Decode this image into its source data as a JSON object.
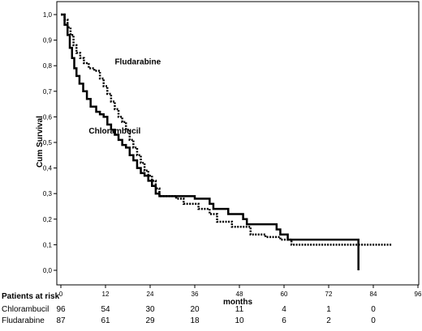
{
  "chart_data": {
    "type": "line",
    "xlabel": "months",
    "ylabel": "Cum Survival",
    "xlim": [
      0,
      96
    ],
    "ylim": [
      0.0,
      1.0
    ],
    "x_ticks": [
      "0",
      "12",
      "24",
      "36",
      "48",
      "60",
      "72",
      "84",
      "96"
    ],
    "y_ticks": [
      "0,0",
      "0,1",
      "0,2",
      "0,3",
      "0,4",
      "0,5",
      "0,6",
      "0,7",
      "0,8",
      "0,9",
      "1,0"
    ],
    "grid": false,
    "annotations": [
      {
        "text": "Fludarabine",
        "x": 14.5,
        "y": 0.805
      },
      {
        "text": "Chlorambucil",
        "x": 7.5,
        "y": 0.535
      }
    ],
    "series": [
      {
        "name": "Chlorambucil",
        "style": "solid",
        "points": [
          [
            0,
            1.0
          ],
          [
            1,
            0.96
          ],
          [
            1.8,
            0.92
          ],
          [
            2.4,
            0.87
          ],
          [
            3,
            0.83
          ],
          [
            3.6,
            0.79
          ],
          [
            4.2,
            0.76
          ],
          [
            5,
            0.73
          ],
          [
            6,
            0.7
          ],
          [
            7,
            0.67
          ],
          [
            8,
            0.64
          ],
          [
            9.5,
            0.62
          ],
          [
            10.5,
            0.61
          ],
          [
            11.5,
            0.6
          ],
          [
            12.5,
            0.57
          ],
          [
            13.5,
            0.55
          ],
          [
            14.5,
            0.53
          ],
          [
            15.5,
            0.51
          ],
          [
            16.5,
            0.49
          ],
          [
            17.5,
            0.48
          ],
          [
            18.5,
            0.45
          ],
          [
            19.5,
            0.43
          ],
          [
            20.5,
            0.4
          ],
          [
            21.5,
            0.38
          ],
          [
            22.5,
            0.37
          ],
          [
            23.5,
            0.35
          ],
          [
            24.5,
            0.33
          ],
          [
            25.5,
            0.3
          ],
          [
            26.5,
            0.29
          ],
          [
            36,
            0.28
          ],
          [
            40,
            0.26
          ],
          [
            41,
            0.24
          ],
          [
            45,
            0.22
          ],
          [
            49,
            0.2
          ],
          [
            50,
            0.18
          ],
          [
            58,
            0.16
          ],
          [
            59,
            0.14
          ],
          [
            61,
            0.12
          ],
          [
            80,
            0.12
          ],
          [
            80,
            0.0
          ]
        ]
      },
      {
        "name": "Fludarabine",
        "style": "dotted",
        "points": [
          [
            0,
            1.0
          ],
          [
            1,
            0.98
          ],
          [
            1.8,
            0.95
          ],
          [
            2.6,
            0.92
          ],
          [
            3.4,
            0.88
          ],
          [
            4.2,
            0.85
          ],
          [
            5.2,
            0.83
          ],
          [
            6.2,
            0.81
          ],
          [
            7.5,
            0.79
          ],
          [
            9,
            0.78
          ],
          [
            10.5,
            0.75
          ],
          [
            11.5,
            0.72
          ],
          [
            12.5,
            0.69
          ],
          [
            13.5,
            0.66
          ],
          [
            14.5,
            0.63
          ],
          [
            15.5,
            0.6
          ],
          [
            16.5,
            0.58
          ],
          [
            17.5,
            0.55
          ],
          [
            18.5,
            0.51
          ],
          [
            19.5,
            0.48
          ],
          [
            20.5,
            0.45
          ],
          [
            21.5,
            0.42
          ],
          [
            22.5,
            0.39
          ],
          [
            23.5,
            0.37
          ],
          [
            24.5,
            0.35
          ],
          [
            25.5,
            0.32
          ],
          [
            26.5,
            0.29
          ],
          [
            31,
            0.28
          ],
          [
            33,
            0.26
          ],
          [
            37,
            0.24
          ],
          [
            40,
            0.22
          ],
          [
            42,
            0.19
          ],
          [
            46,
            0.17
          ],
          [
            51,
            0.14
          ],
          [
            55,
            0.13
          ],
          [
            59,
            0.12
          ],
          [
            62,
            0.1
          ],
          [
            89,
            0.1
          ]
        ]
      }
    ]
  },
  "risk_table": {
    "title": "Patients at risk",
    "rows": [
      {
        "label": "Chlorambucil",
        "values": [
          "96",
          "54",
          "30",
          "20",
          "11",
          "4",
          "1",
          "0"
        ]
      },
      {
        "label": "Fludarabine",
        "values": [
          "87",
          "61",
          "29",
          "18",
          "10",
          "6",
          "2",
          "0"
        ]
      }
    ]
  }
}
